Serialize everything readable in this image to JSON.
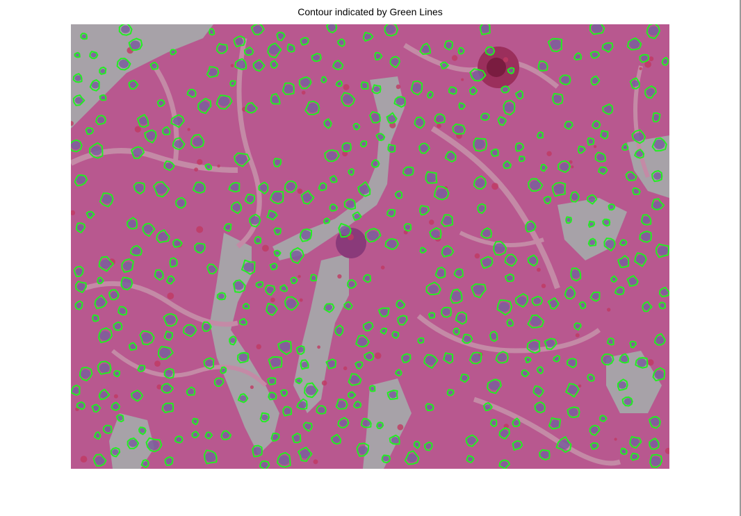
{
  "figure": {
    "title": "Contour indicated by Green Lines"
  },
  "colors": {
    "background": "#ffffff",
    "tissue": "#b8588f",
    "tissue_dark": "#a94a83",
    "stroma": "#c48aa6",
    "lumen": "#a7a2a8",
    "nucleus": "#7a5e9c",
    "red_cell": "#c03a62",
    "contour": "#22ee22"
  }
}
